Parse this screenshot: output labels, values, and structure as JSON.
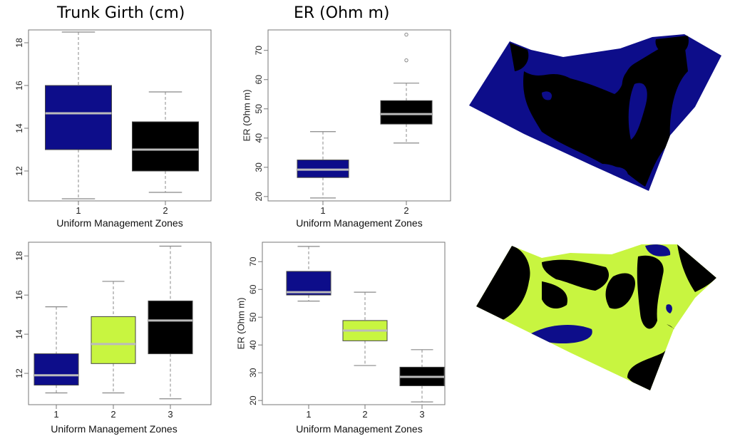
{
  "column_titles": [
    "Trunk Girth (cm)",
    "ER (Ohm m)"
  ],
  "colors": {
    "zone_blue": "#0d0d8a",
    "zone_green": "#c8f540",
    "zone_black": "#000000",
    "median": "#bbbbbb",
    "whisker": "#888888"
  },
  "maps": [
    {
      "name": "map-2-zones",
      "zones": [
        "blue",
        "black"
      ]
    },
    {
      "name": "map-3-zones",
      "zones": [
        "black",
        "green",
        "blue"
      ]
    }
  ],
  "chart_data": [
    {
      "type": "box",
      "panel": "top-left",
      "xlabel": "Uniform Management Zones",
      "ylabel": "",
      "ylim": [
        10.6,
        18.6
      ],
      "yticks": [
        12,
        14,
        16,
        18
      ],
      "categories": [
        "1",
        "2"
      ],
      "boxes": [
        {
          "zone": "1",
          "color": "#0d0d8a",
          "min": 10.7,
          "q1": 13.0,
          "median": 14.7,
          "q3": 16.0,
          "max": 18.5,
          "outliers": []
        },
        {
          "zone": "2",
          "color": "#000000",
          "min": 11.0,
          "q1": 12.0,
          "median": 13.0,
          "q3": 14.3,
          "max": 15.7,
          "outliers": []
        }
      ]
    },
    {
      "type": "box",
      "panel": "top-middle",
      "xlabel": "Uniform Management Zones",
      "ylabel": "ER (Ohm m)",
      "ylim": [
        18.5,
        77
      ],
      "yticks": [
        20,
        30,
        40,
        50,
        60,
        70
      ],
      "categories": [
        "1",
        "2"
      ],
      "boxes": [
        {
          "zone": "1",
          "color": "#0d0d8a",
          "min": 19.5,
          "q1": 26.5,
          "median": 29.2,
          "q3": 32.5,
          "max": 42.2,
          "outliers": []
        },
        {
          "zone": "2",
          "color": "#000000",
          "min": 38.3,
          "q1": 44.8,
          "median": 48.2,
          "q3": 52.8,
          "max": 58.8,
          "outliers": [
            66.6,
            75.4
          ]
        }
      ]
    },
    {
      "type": "box",
      "panel": "bottom-left",
      "xlabel": "Uniform Management Zones",
      "ylabel": "",
      "ylim": [
        10.4,
        18.7
      ],
      "yticks": [
        12,
        14,
        16,
        18
      ],
      "categories": [
        "1",
        "2",
        "3"
      ],
      "boxes": [
        {
          "zone": "1",
          "color": "#0d0d8a",
          "min": 11.0,
          "q1": 11.4,
          "median": 11.9,
          "q3": 13.0,
          "max": 15.4,
          "outliers": []
        },
        {
          "zone": "2",
          "color": "#c8f540",
          "min": 11.0,
          "q1": 12.5,
          "median": 13.5,
          "q3": 14.9,
          "max": 16.7,
          "outliers": []
        },
        {
          "zone": "3",
          "color": "#000000",
          "min": 10.7,
          "q1": 13.0,
          "median": 14.7,
          "q3": 15.7,
          "max": 18.5,
          "outliers": []
        }
      ]
    },
    {
      "type": "box",
      "panel": "bottom-middle",
      "xlabel": "Uniform Management Zones",
      "ylabel": "ER (Ohm m)",
      "ylim": [
        18.5,
        77
      ],
      "yticks": [
        20,
        30,
        40,
        50,
        60,
        70
      ],
      "categories": [
        "1",
        "2",
        "3"
      ],
      "boxes": [
        {
          "zone": "1",
          "color": "#0d0d8a",
          "min": 55.8,
          "q1": 58.0,
          "median": 59.0,
          "q3": 66.5,
          "max": 75.5,
          "outliers": []
        },
        {
          "zone": "2",
          "color": "#c8f540",
          "min": 32.6,
          "q1": 41.5,
          "median": 45.2,
          "q3": 48.8,
          "max": 59.0,
          "outliers": []
        },
        {
          "zone": "3",
          "color": "#000000",
          "min": 19.5,
          "q1": 25.3,
          "median": 28.5,
          "q3": 32.0,
          "max": 38.3,
          "outliers": []
        }
      ]
    }
  ]
}
